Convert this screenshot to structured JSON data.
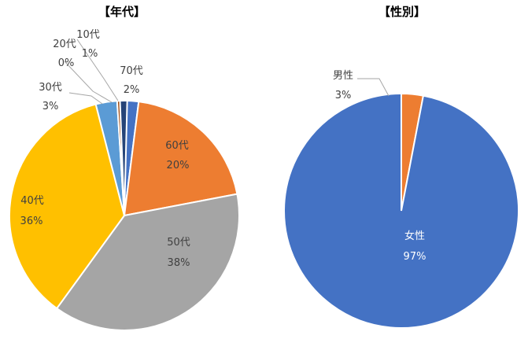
{
  "chart_data": [
    {
      "type": "pie",
      "title": "【年代】",
      "slices": [
        {
          "label": "10代",
          "value": 1,
          "pct": "1%",
          "color": "#264478"
        },
        {
          "label": "20代",
          "value": 0,
          "pct": "0%",
          "color": "#9E480E"
        },
        {
          "label": "30代",
          "value": 3,
          "pct": "3%",
          "color": "#5B9BD5"
        },
        {
          "label": "40代",
          "value": 36,
          "pct": "36%",
          "color": "#FFC000"
        },
        {
          "label": "50代",
          "value": 38,
          "pct": "38%",
          "color": "#A5A5A5"
        },
        {
          "label": "60代",
          "value": 20,
          "pct": "20%",
          "color": "#ED7D31"
        },
        {
          "label": "70代",
          "value": 2,
          "pct": "2%",
          "color": "#4472C4"
        }
      ],
      "draw_order": [
        "70代",
        "60代",
        "50代",
        "40代",
        "30代",
        "20代",
        "10代"
      ]
    },
    {
      "type": "pie",
      "title": "【性別】",
      "slices": [
        {
          "label": "女性",
          "value": 97,
          "pct": "97%",
          "color": "#4472C4"
        },
        {
          "label": "男性",
          "value": 3,
          "pct": "3%",
          "color": "#ED7D31"
        }
      ]
    }
  ]
}
